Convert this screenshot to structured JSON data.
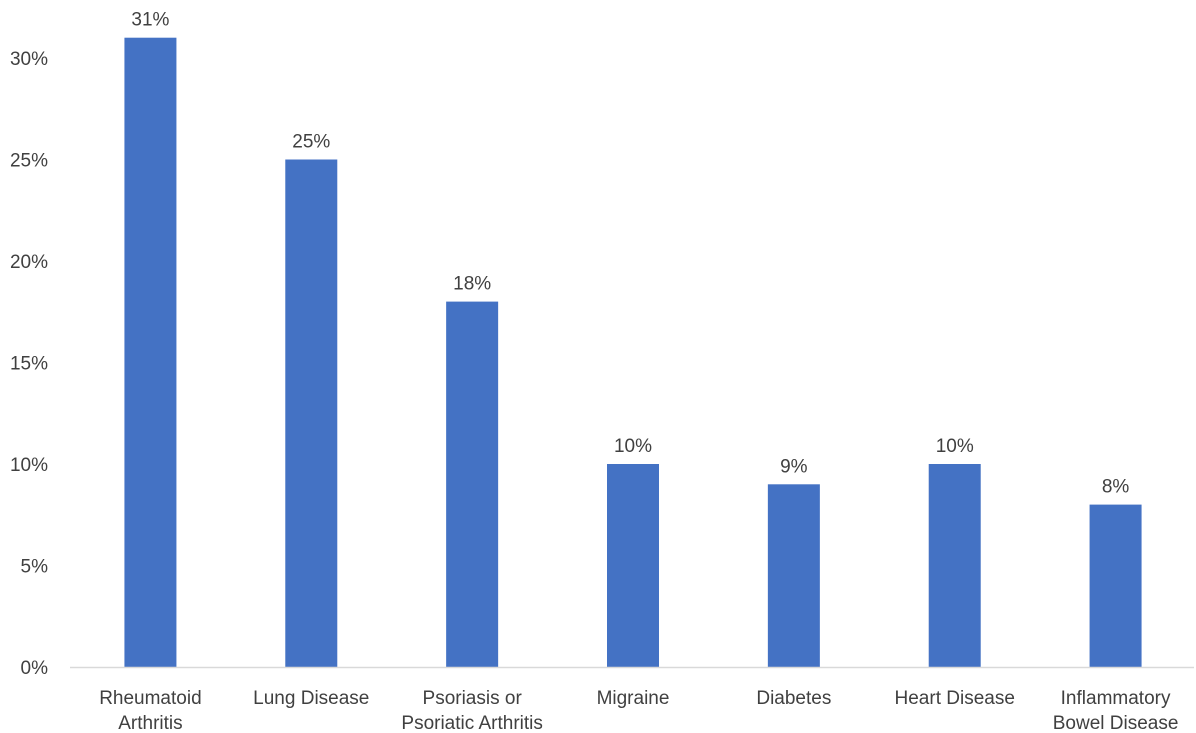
{
  "chart_data": {
    "type": "bar",
    "categories": [
      [
        "Rheumatoid",
        "Arthritis"
      ],
      [
        "Lung Disease"
      ],
      [
        "Psoriasis or",
        "Psoriatic Arthritis"
      ],
      [
        "Migraine"
      ],
      [
        "Diabetes"
      ],
      [
        "Heart Disease"
      ],
      [
        "Inflammatory",
        "Bowel Disease"
      ]
    ],
    "values": [
      31,
      25,
      18,
      10,
      9,
      10,
      8
    ],
    "value_labels": [
      "31%",
      "25%",
      "18%",
      "10%",
      "9%",
      "10%",
      "8%"
    ],
    "y_ticks": [
      0,
      5,
      10,
      15,
      20,
      25,
      30
    ],
    "y_tick_labels": [
      "0%",
      "5%",
      "10%",
      "15%",
      "20%",
      "25%",
      "30%"
    ],
    "ylim": [
      0,
      31.5
    ],
    "grid": false,
    "legend": "none",
    "colors": {
      "bar": "#4472C4",
      "axis": "#D9D9D9",
      "text": "#404040"
    }
  }
}
